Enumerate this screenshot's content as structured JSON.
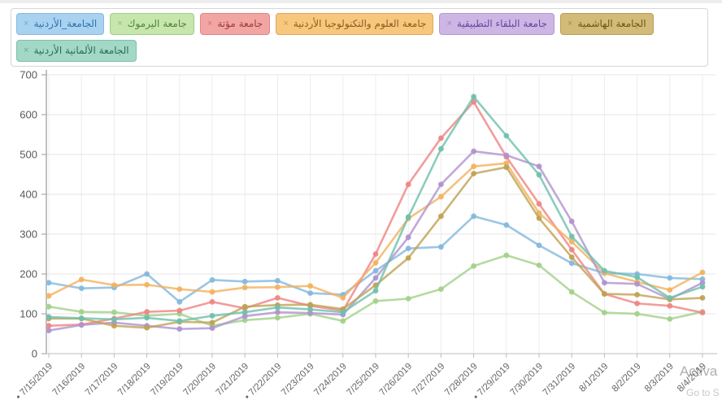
{
  "legend": {
    "close_label": "×",
    "chips": [
      {
        "label": "الجامعة_الأردنية",
        "bg": "#a8d2f0",
        "border": "#8ab8dc",
        "text": "#3173ad"
      },
      {
        "label": "جامعة اليرموك",
        "bg": "#c6e6ad",
        "border": "#a3cd85",
        "text": "#53823f"
      },
      {
        "label": "جامعة مؤتة",
        "bg": "#f2a6a4",
        "border": "#e08585",
        "text": "#9e3a38"
      },
      {
        "label": "جامعة العلوم والتكنولوجيا الأردنية",
        "bg": "#f6c77d",
        "border": "#e0a955",
        "text": "#8a6020"
      },
      {
        "label": "جامعة البلقاء التطبيقية",
        "bg": "#cdb6e4",
        "border": "#b399d1",
        "text": "#68479e"
      },
      {
        "label": "الجامعة الهاشمية",
        "bg": "#d2ba79",
        "border": "#b89e54",
        "text": "#6d5716"
      },
      {
        "label": "الجامعة الألمانية الأردنية",
        "bg": "#a2d8c5",
        "border": "#7fc0aa",
        "text": "#276e59"
      }
    ]
  },
  "chart_data": {
    "type": "line",
    "x": [
      "7/15/2019",
      "7/16/2019",
      "7/17/2019",
      "7/18/2019",
      "7/19/2019",
      "7/20/2019",
      "7/21/2019",
      "7/22/2019",
      "7/23/2019",
      "7/24/2019",
      "7/25/2019",
      "7/26/2019",
      "7/27/2019",
      "7/28/2019",
      "7/29/2019",
      "7/30/2019",
      "7/31/2019",
      "8/1/2019",
      "8/2/2019",
      "8/3/2019",
      "8/4/2019"
    ],
    "week_marker_indices": [
      0,
      7,
      14
    ],
    "ylim": [
      0,
      700
    ],
    "y_step": 100,
    "grid": true,
    "legend_position": "top",
    "series": [
      {
        "name": "الجامعة_الأردنية",
        "color": "#82b8dd",
        "values": [
          178,
          164,
          166,
          200,
          130,
          185,
          181,
          183,
          152,
          148,
          208,
          264,
          268,
          345,
          323,
          272,
          227,
          202,
          200,
          190,
          187
        ]
      },
      {
        "name": "جامعة اليرموك",
        "color": "#a3d189",
        "values": [
          118,
          105,
          104,
          95,
          100,
          70,
          84,
          90,
          100,
          82,
          132,
          138,
          162,
          220,
          247,
          222,
          155,
          103,
          100,
          87,
          105
        ]
      },
      {
        "name": "جامعة مؤتة",
        "color": "#ee8583",
        "values": [
          70,
          73,
          88,
          105,
          108,
          130,
          114,
          140,
          120,
          108,
          250,
          425,
          541,
          632,
          494,
          376,
          261,
          150,
          126,
          120,
          103
        ]
      },
      {
        "name": "جامعة العلوم والتكنولوجيا الأردنية",
        "color": "#f2b25f",
        "values": [
          145,
          186,
          172,
          173,
          162,
          155,
          166,
          167,
          170,
          140,
          228,
          339,
          394,
          470,
          478,
          353,
          281,
          202,
          180,
          160,
          204
        ]
      },
      {
        "name": "جامعة البلقاء التطبيقية",
        "color": "#b092ce",
        "values": [
          58,
          72,
          78,
          70,
          62,
          64,
          94,
          104,
          102,
          98,
          190,
          292,
          425,
          508,
          498,
          470,
          332,
          178,
          175,
          137,
          178
        ]
      },
      {
        "name": "الجامعة الهاشمية",
        "color": "#bfa254",
        "values": [
          88,
          88,
          70,
          65,
          80,
          78,
          118,
          122,
          123,
          112,
          172,
          240,
          345,
          452,
          468,
          340,
          242,
          150,
          148,
          136,
          140
        ]
      },
      {
        "name": "الجامعة الألمانية الأردنية",
        "color": "#6ec0ab",
        "values": [
          92,
          89,
          86,
          90,
          82,
          95,
          104,
          116,
          111,
          104,
          158,
          343,
          514,
          645,
          547,
          449,
          294,
          208,
          192,
          140,
          168
        ]
      }
    ]
  },
  "watermark": {
    "line1": "Activa",
    "line2": "Go to S"
  }
}
